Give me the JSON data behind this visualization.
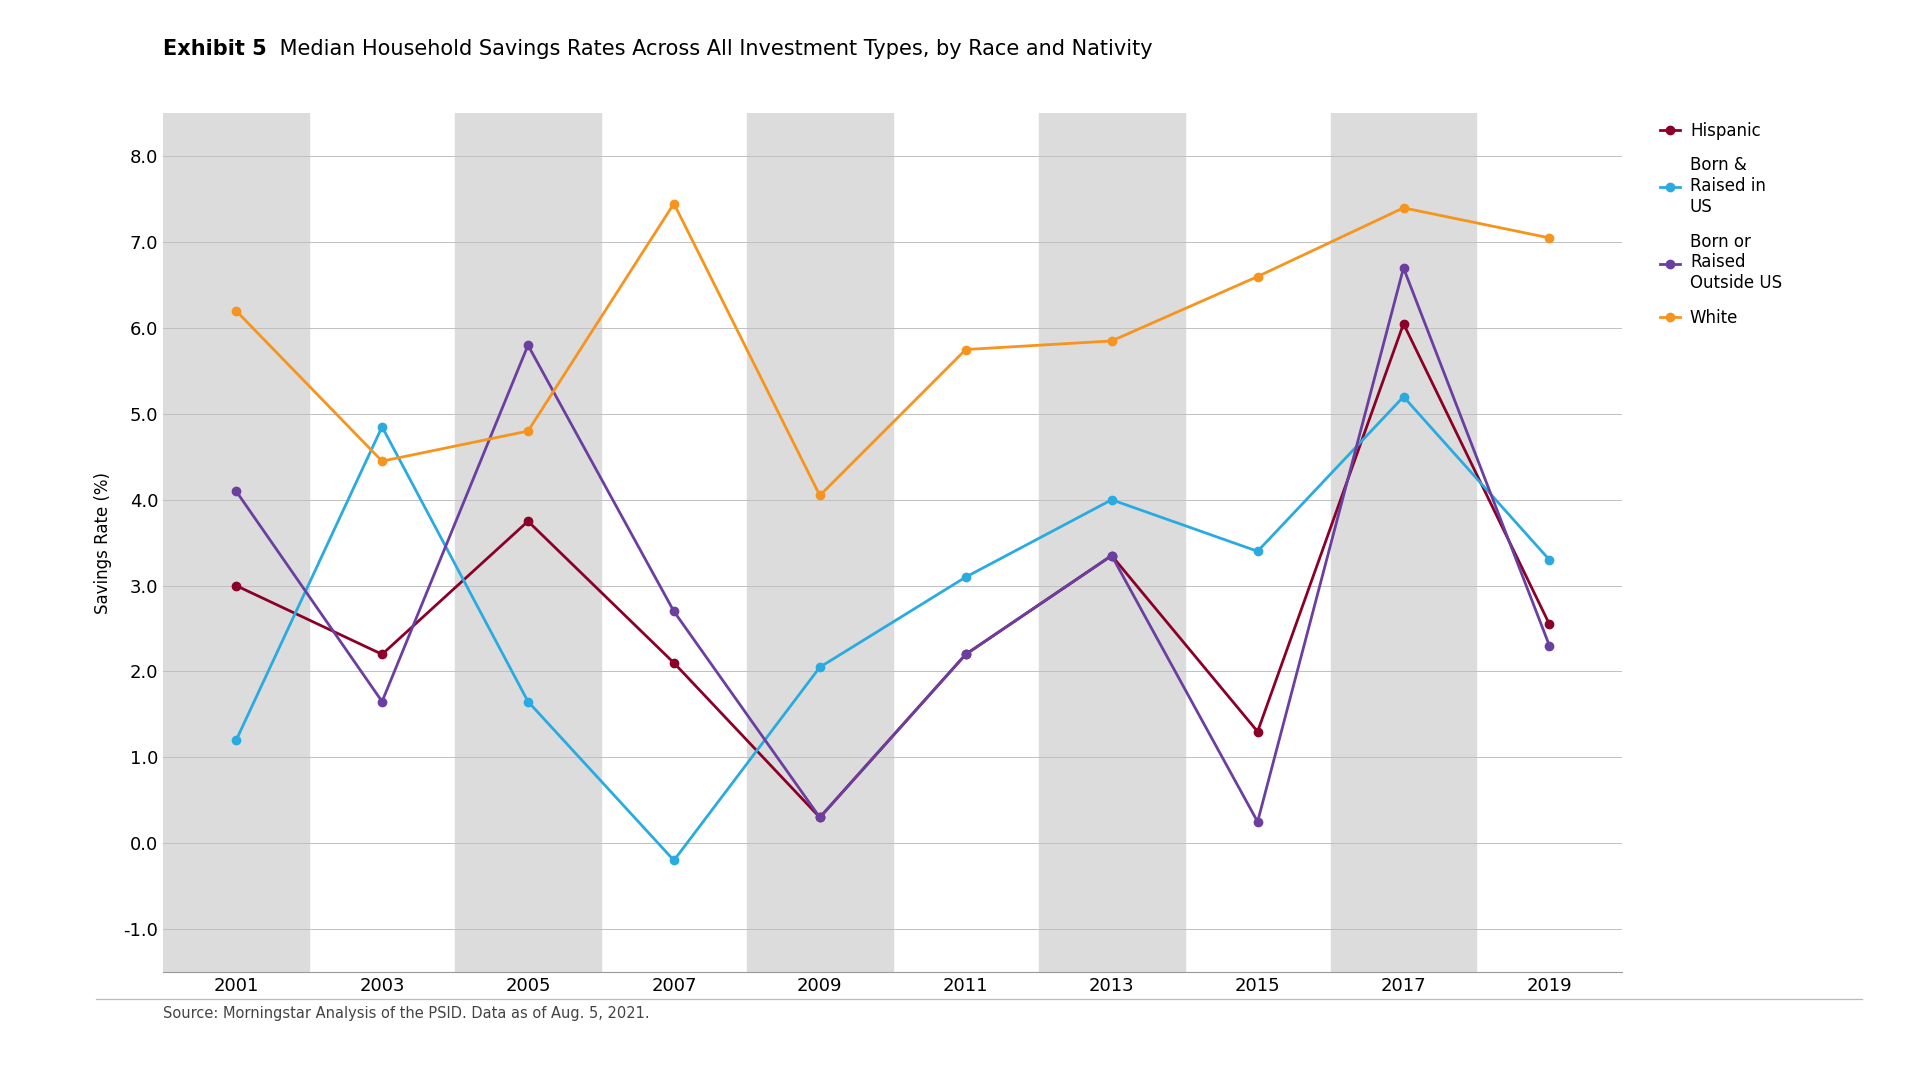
{
  "title_bold": "Exhibit 5",
  "title_regular": " Median Household Savings Rates Across All Investment Types, by Race and Nativity",
  "ylabel": "Savings Rate (%)",
  "source": "Source: Morningstar Analysis of the PSID. Data as of Aug. 5, 2021.",
  "years": [
    2001,
    2003,
    2005,
    2007,
    2009,
    2011,
    2013,
    2015,
    2017,
    2019
  ],
  "series": {
    "Hispanic": {
      "color": "#8B0028",
      "values": [
        3.0,
        2.2,
        3.75,
        2.1,
        0.3,
        2.2,
        3.35,
        1.3,
        6.05,
        2.55
      ]
    },
    "Born & Raised in US": {
      "color": "#29ABE2",
      "values": [
        1.2,
        4.85,
        1.65,
        -0.2,
        2.05,
        3.1,
        4.0,
        3.4,
        5.2,
        3.3
      ]
    },
    "Born or Raised Outside US": {
      "color": "#6B3FA0",
      "values": [
        4.1,
        1.65,
        5.8,
        2.7,
        0.3,
        2.2,
        3.35,
        0.25,
        6.7,
        2.3
      ]
    },
    "White": {
      "color": "#F7941D",
      "values": [
        6.2,
        4.45,
        4.8,
        7.45,
        4.05,
        5.75,
        5.85,
        6.6,
        7.4,
        7.05
      ]
    }
  },
  "ylim": [
    -1.5,
    8.5
  ],
  "yticks": [
    -1.0,
    0.0,
    1.0,
    2.0,
    3.0,
    4.0,
    5.0,
    6.0,
    7.0,
    8.0
  ],
  "shaded_centers": [
    2001,
    2005,
    2009,
    2013,
    2017
  ],
  "background_color": "#FFFFFF",
  "plot_bg_color": "#FFFFFF",
  "shading_color": "#DCDCDC",
  "legend_display": {
    "Hispanic": "Hispanic",
    "Born & Raised in US": "Born &\nRaised in\nUS",
    "Born or Raised Outside US": "Born or\nRaised\nOutside US",
    "White": "White"
  }
}
